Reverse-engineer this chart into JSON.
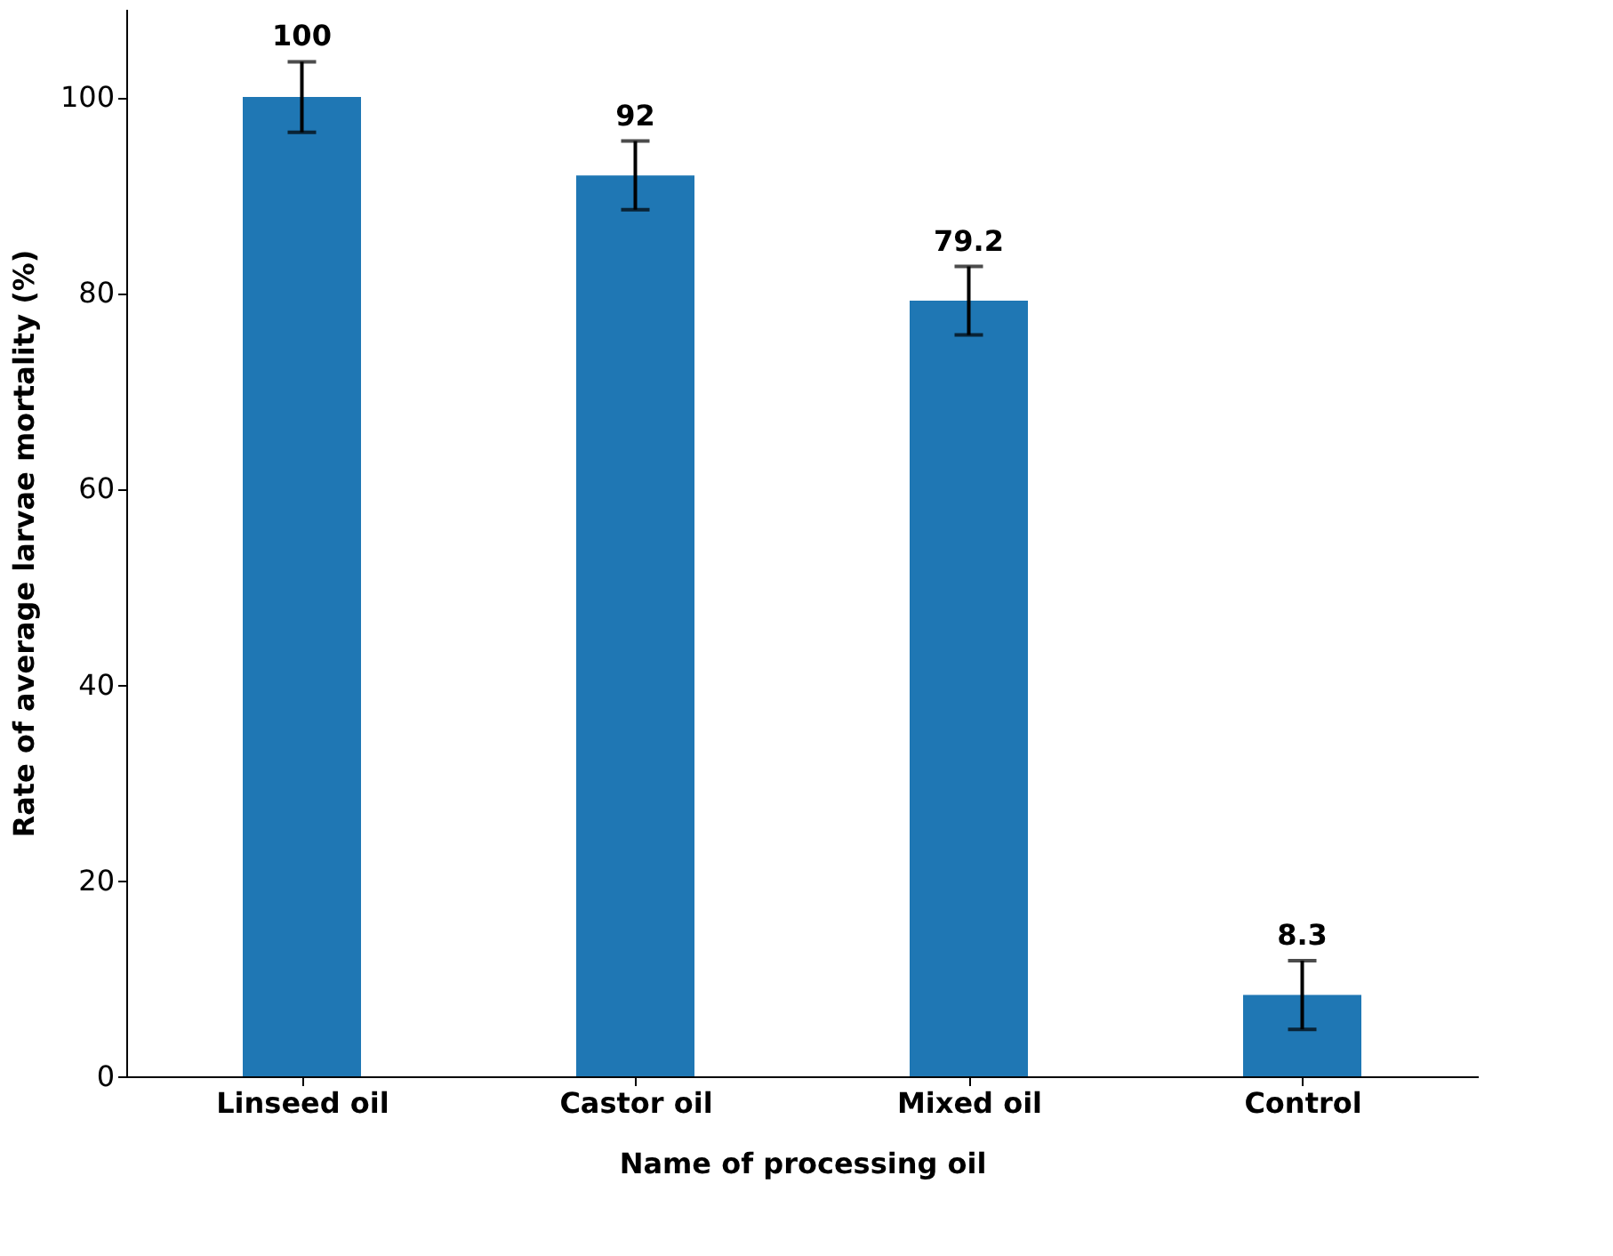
{
  "chart_data": {
    "type": "bar",
    "xlabel": "Name of processing oil",
    "ylabel": "Rate of average larvae mortality (%)",
    "categories": [
      "Linseed oil",
      "Castor oil",
      "Mixed oil",
      "Control"
    ],
    "values": [
      100,
      92,
      79.2,
      8.3
    ],
    "errors": [
      3.6,
      3.5,
      3.5,
      3.5
    ],
    "color": "#1f77b4",
    "data_labels": true,
    "ylim": [
      0,
      109
    ],
    "yticks": [
      0,
      20,
      40,
      60,
      80,
      100
    ],
    "grid": false
  }
}
